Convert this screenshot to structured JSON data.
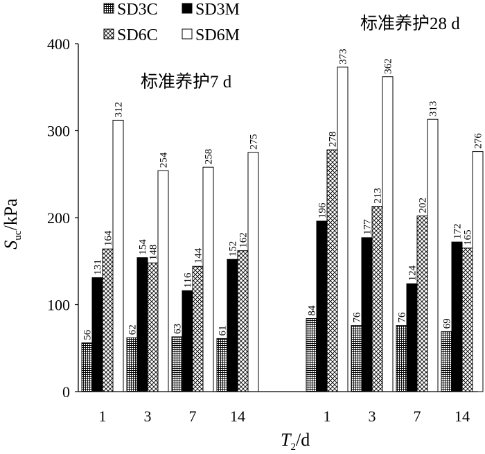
{
  "chart_data": {
    "type": "bar",
    "title": "",
    "xlabel": "T2/d",
    "xlabel_main": "T",
    "xlabel_sub": "2",
    "xlabel_suffix": "/d",
    "ylabel": "Suc/kPa",
    "ylabel_main": "S",
    "ylabel_sub": "uc",
    "ylabel_suffix": "/kPa",
    "ylim": [
      0,
      400
    ],
    "yticks": [
      "0",
      "100",
      "200",
      "300",
      "400"
    ],
    "grid": false,
    "legend_position": "top-left",
    "groups": [
      {
        "annotation": "标准养护7 d",
        "categories": [
          "1",
          "3",
          "7",
          "14"
        ],
        "series": [
          {
            "name": "SD3C",
            "pattern": "grid",
            "values": [
              56,
              62,
              63,
              61
            ]
          },
          {
            "name": "SD3M",
            "pattern": "solid",
            "values": [
              131,
              154,
              116,
              152
            ]
          },
          {
            "name": "SD6C",
            "pattern": "crosshatch",
            "values": [
              164,
              148,
              144,
              162
            ]
          },
          {
            "name": "SD6M",
            "pattern": "empty",
            "values": [
              312,
              254,
              258,
              275
            ]
          }
        ]
      },
      {
        "annotation": "标准养护28 d",
        "categories": [
          "1",
          "3",
          "7",
          "14"
        ],
        "series": [
          {
            "name": "SD3C",
            "pattern": "grid",
            "values": [
              84,
              76,
              76,
              69
            ]
          },
          {
            "name": "SD3M",
            "pattern": "solid",
            "values": [
              196,
              177,
              124,
              172
            ]
          },
          {
            "name": "SD6C",
            "pattern": "crosshatch",
            "values": [
              278,
              213,
              202,
              165
            ]
          },
          {
            "name": "SD6M",
            "pattern": "empty",
            "values": [
              373,
              362,
              313,
              276
            ]
          }
        ]
      }
    ],
    "legend": [
      {
        "name": "SD3C",
        "pattern": "grid"
      },
      {
        "name": "SD3M",
        "pattern": "solid"
      },
      {
        "name": "SD6C",
        "pattern": "crosshatch"
      },
      {
        "name": "SD6M",
        "pattern": "empty"
      }
    ]
  }
}
